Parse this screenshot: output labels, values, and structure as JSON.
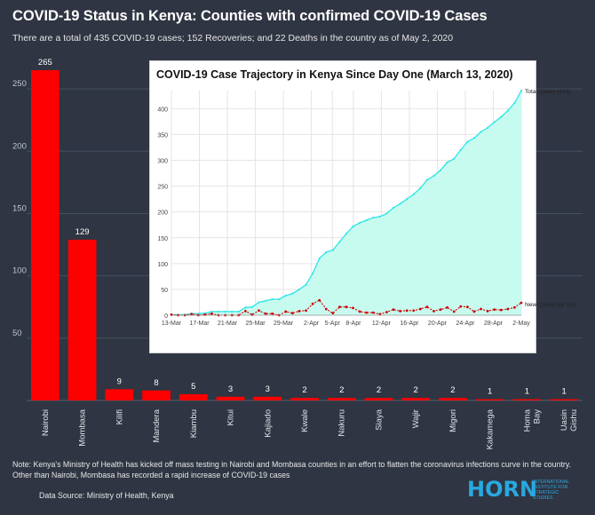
{
  "header": {
    "title": "COVID-19 Status in Kenya: Counties with confirmed COVID-19 Cases",
    "subtitle": "There are a total of 435 COVID-19 cases; 152 Recoveries; and 22 Deaths in the country as of May 2, 2020"
  },
  "colors": {
    "background": "#2f3542",
    "bar": "#ff0000",
    "total_line": "#2ee6e6",
    "total_fill": "#c8fbef",
    "new_line": "#cc0000"
  },
  "chart_data": [
    {
      "type": "bar",
      "categories": [
        "Nairobi",
        "Mombasa",
        "Kilifi",
        "Mandera",
        "Kiambu",
        "Kitui",
        "Kajiado",
        "Kwale",
        "Nakuru",
        "Siaya",
        "Wajir",
        "Migori",
        "Kakamega",
        "Homa Bay",
        "Uasin Gishu"
      ],
      "values": [
        265,
        129,
        9,
        8,
        5,
        3,
        3,
        2,
        2,
        2,
        2,
        2,
        1,
        1,
        1
      ],
      "yticks": [
        50,
        100,
        150,
        200,
        250
      ],
      "ylim": [
        0,
        270
      ],
      "grid": true
    },
    {
      "type": "line",
      "title": "COVID-19 Case Trajectory in Kenya Since Day One (March 13, 2020)",
      "x_ticks": [
        "13-Mar",
        "17-Mar",
        "21-Mar",
        "25-Mar",
        "29-Mar",
        "2-Apr",
        "5-Apr",
        "8-Apr",
        "12-Apr",
        "16-Apr",
        "20-Apr",
        "24-Apr",
        "28-Apr",
        "2-May"
      ],
      "x_start": "13-Mar",
      "x_end": "2-May",
      "yticks": [
        0,
        50,
        100,
        150,
        200,
        250,
        300,
        350,
        400
      ],
      "ylim": [
        0,
        435
      ],
      "series": [
        {
          "name": "Total Cases [435]",
          "fill": true,
          "values": [
            1,
            1,
            1,
            3,
            3,
            4,
            7,
            7,
            7,
            7,
            7,
            15,
            16,
            25,
            28,
            31,
            31,
            38,
            42,
            50,
            59,
            81,
            110,
            122,
            126,
            142,
            158,
            172,
            179,
            184,
            189,
            191,
            197,
            208,
            216,
            225,
            234,
            246,
            262,
            270,
            281,
            296,
            303,
            320,
            336,
            343,
            355,
            363,
            374,
            384,
            396,
            411,
            435
          ]
        },
        {
          "name": "New Cases per day",
          "fill": false,
          "values": [
            1,
            0,
            0,
            2,
            0,
            1,
            3,
            0,
            0,
            0,
            0,
            8,
            1,
            9,
            3,
            3,
            0,
            7,
            4,
            8,
            9,
            22,
            29,
            12,
            4,
            16,
            16,
            14,
            7,
            5,
            5,
            2,
            6,
            11,
            8,
            9,
            9,
            12,
            16,
            8,
            11,
            15,
            7,
            17,
            16,
            7,
            12,
            8,
            11,
            10,
            12,
            15,
            24
          ]
        }
      ]
    }
  ],
  "footer": {
    "note": "Note: Kenya's Ministry of Health has kicked off mass testing in Nairobi and Mombasa counties in an effort to flatten the coronavirus infections curve in the country. Other than Nairobi, Mombasa has recorded a rapid increase of COVID-19 cases",
    "source": "Data Source: Ministry of Health, Kenya"
  },
  "logo": {
    "word": "HORN",
    "tagline": [
      "International",
      "Institute for",
      "Strategic",
      "Studies"
    ]
  }
}
